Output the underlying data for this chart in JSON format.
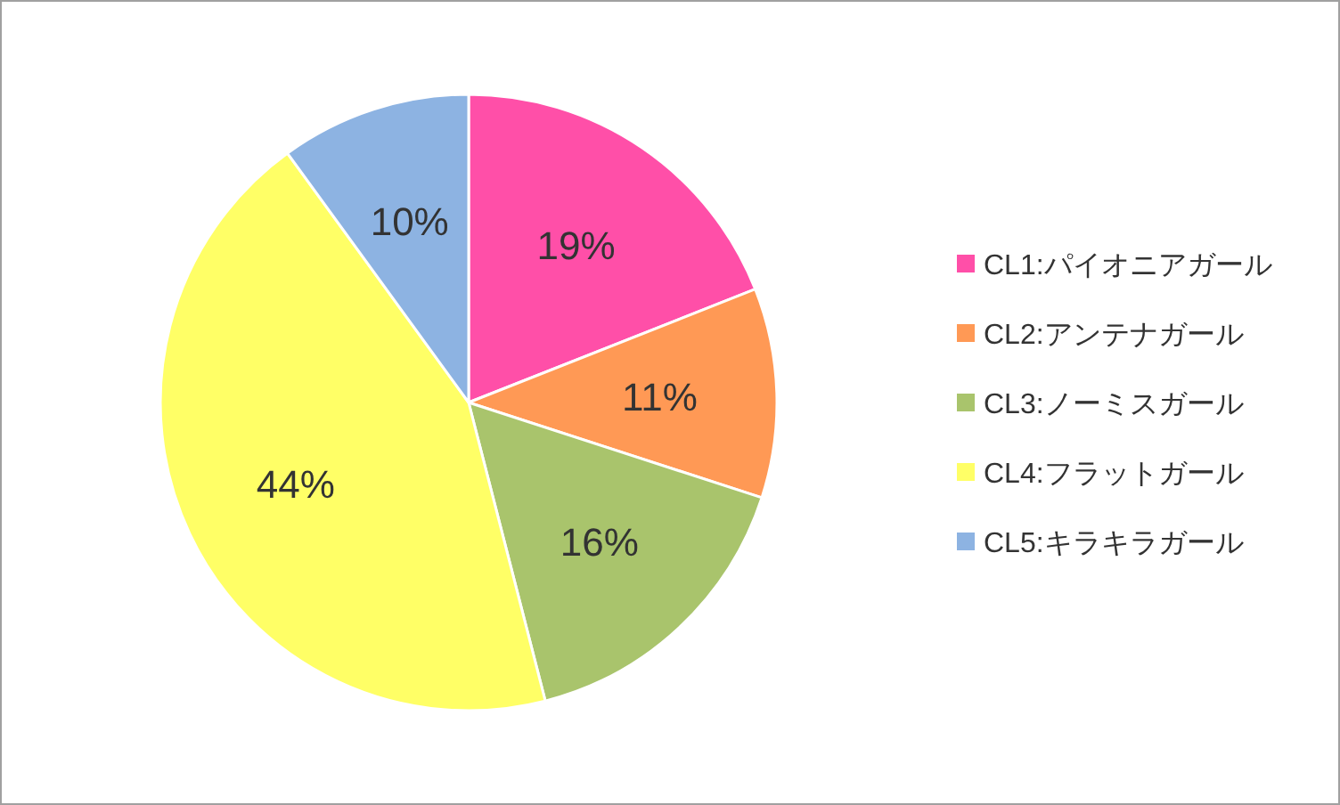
{
  "chart_data": {
    "type": "pie",
    "categories": [
      "CL1:パイオニアガール",
      "CL2:アンテナガール",
      "CL3:ノーミスガール",
      "CL4:フラットガール",
      "CL5:キラキラガール"
    ],
    "values": [
      19,
      11,
      16,
      44,
      10
    ],
    "value_labels": [
      "19%",
      "11%",
      "16%",
      "44%",
      "10%"
    ],
    "colors": [
      "#ff4fa8",
      "#ff9955",
      "#a9c46c",
      "#ffff66",
      "#8db3e2"
    ],
    "legend": "right"
  }
}
